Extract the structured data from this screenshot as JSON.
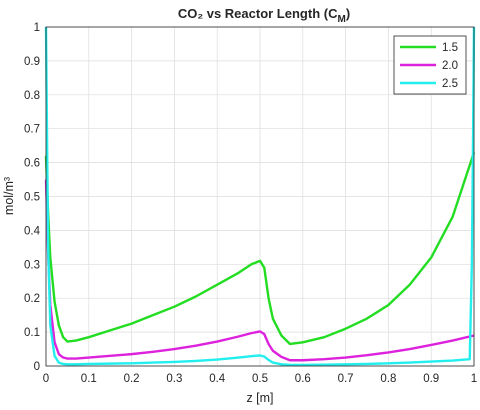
{
  "chart_data": {
    "type": "line",
    "title": "CO₂ vs Reactor Length (C",
    "title_subscript": "M",
    "title_close": ")",
    "xlabel": "z [m]",
    "ylabel": "mol/m³",
    "xlim": [
      0,
      1
    ],
    "ylim": [
      0,
      1
    ],
    "grid": true,
    "legend_position": "top-right",
    "xticks": [
      "0",
      "0.1",
      "0.2",
      "0.3",
      "0.4",
      "0.5",
      "0.6",
      "0.7",
      "0.8",
      "0.9",
      "1"
    ],
    "yticks": [
      "0",
      "0.1",
      "0.2",
      "0.3",
      "0.4",
      "0.5",
      "0.6",
      "0.7",
      "0.8",
      "0.9",
      "1"
    ],
    "series": [
      {
        "name": "1.5",
        "color": "#22dd22",
        "x": [
          0,
          0.005,
          0.01,
          0.02,
          0.03,
          0.04,
          0.05,
          0.07,
          0.1,
          0.15,
          0.2,
          0.25,
          0.3,
          0.35,
          0.4,
          0.45,
          0.48,
          0.5,
          0.51,
          0.52,
          0.53,
          0.55,
          0.57,
          0.6,
          0.65,
          0.7,
          0.75,
          0.8,
          0.85,
          0.9,
          0.95,
          1.0
        ],
        "y": [
          0.62,
          0.45,
          0.32,
          0.19,
          0.12,
          0.085,
          0.072,
          0.075,
          0.085,
          0.105,
          0.125,
          0.15,
          0.175,
          0.205,
          0.24,
          0.275,
          0.3,
          0.31,
          0.29,
          0.2,
          0.14,
          0.09,
          0.065,
          0.07,
          0.085,
          0.11,
          0.14,
          0.18,
          0.24,
          0.32,
          0.44,
          0.63
        ]
      },
      {
        "name": "2.0",
        "color": "#dd22dd",
        "x": [
          0,
          0.005,
          0.01,
          0.02,
          0.03,
          0.04,
          0.05,
          0.07,
          0.1,
          0.15,
          0.2,
          0.25,
          0.3,
          0.35,
          0.4,
          0.45,
          0.48,
          0.5,
          0.51,
          0.52,
          0.53,
          0.55,
          0.57,
          0.6,
          0.65,
          0.7,
          0.75,
          0.8,
          0.85,
          0.9,
          0.95,
          1.0
        ],
        "y": [
          0.55,
          0.33,
          0.18,
          0.07,
          0.035,
          0.025,
          0.022,
          0.022,
          0.025,
          0.03,
          0.035,
          0.042,
          0.05,
          0.06,
          0.072,
          0.087,
          0.097,
          0.102,
          0.094,
          0.065,
          0.045,
          0.027,
          0.017,
          0.017,
          0.02,
          0.025,
          0.032,
          0.04,
          0.05,
          0.062,
          0.075,
          0.09
        ]
      },
      {
        "name": "2.5",
        "color": "#22eeee",
        "x": [
          0,
          0.003,
          0.005,
          0.01,
          0.02,
          0.03,
          0.04,
          0.05,
          0.07,
          0.1,
          0.15,
          0.2,
          0.25,
          0.3,
          0.35,
          0.4,
          0.45,
          0.48,
          0.5,
          0.51,
          0.52,
          0.53,
          0.55,
          0.57,
          0.6,
          0.65,
          0.7,
          0.75,
          0.8,
          0.85,
          0.9,
          0.95,
          0.99,
          0.995,
          0.998,
          1.0
        ],
        "y": [
          1.0,
          0.6,
          0.35,
          0.12,
          0.03,
          0.01,
          0.006,
          0.005,
          0.005,
          0.006,
          0.007,
          0.008,
          0.01,
          0.012,
          0.015,
          0.019,
          0.025,
          0.029,
          0.031,
          0.028,
          0.018,
          0.01,
          0.005,
          0.003,
          0.003,
          0.004,
          0.005,
          0.006,
          0.008,
          0.01,
          0.013,
          0.016,
          0.02,
          0.3,
          0.7,
          1.0
        ]
      }
    ]
  }
}
